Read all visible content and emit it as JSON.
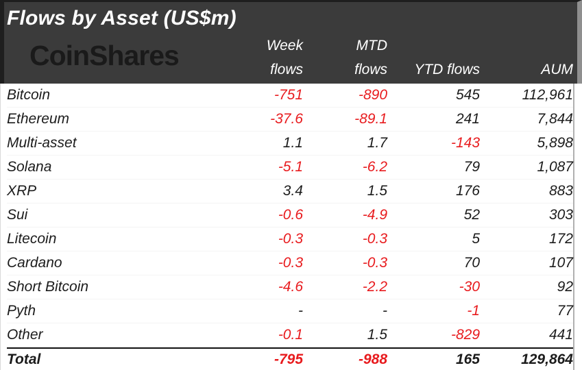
{
  "header": {
    "title": "Flows by Asset (US$m)",
    "brand": "CoinShares",
    "columns": {
      "week_line1": "Week",
      "week_line2": "flows",
      "mtd_line1": "MTD",
      "mtd_line2": "flows",
      "ytd": "YTD flows",
      "aum": "AUM"
    }
  },
  "colors": {
    "header_bg": "#3b3b3b",
    "header_text": "#ffffff",
    "brand_text": "#1a1a1a",
    "body_text": "#1c1c1c",
    "negative": "#e81b1e"
  },
  "chart_data": {
    "type": "table",
    "title": "Flows by Asset (US$m)",
    "columns": [
      "Asset",
      "Week flows",
      "MTD flows",
      "YTD flows",
      "AUM"
    ],
    "rows": [
      [
        "Bitcoin",
        "-751",
        "-890",
        "545",
        "112,961"
      ],
      [
        "Ethereum",
        "-37.6",
        "-89.1",
        "241",
        "7,844"
      ],
      [
        "Multi-asset",
        "1.1",
        "1.7",
        "-143",
        "5,898"
      ],
      [
        "Solana",
        "-5.1",
        "-6.2",
        "79",
        "1,087"
      ],
      [
        "XRP",
        "3.4",
        "1.5",
        "176",
        "883"
      ],
      [
        "Sui",
        "-0.6",
        "-4.9",
        "52",
        "303"
      ],
      [
        "Litecoin",
        "-0.3",
        "-0.3",
        "5",
        "172"
      ],
      [
        "Cardano",
        "-0.3",
        "-0.3",
        "70",
        "107"
      ],
      [
        "Short Bitcoin",
        "-4.6",
        "-2.2",
        "-30",
        "92"
      ],
      [
        "Pyth",
        "-",
        "-",
        "-1",
        "77"
      ],
      [
        "Other",
        "-0.1",
        "1.5",
        "-829",
        "441"
      ]
    ],
    "total_row": [
      "Total",
      "-795",
      "-988",
      "165",
      "129,864"
    ]
  }
}
